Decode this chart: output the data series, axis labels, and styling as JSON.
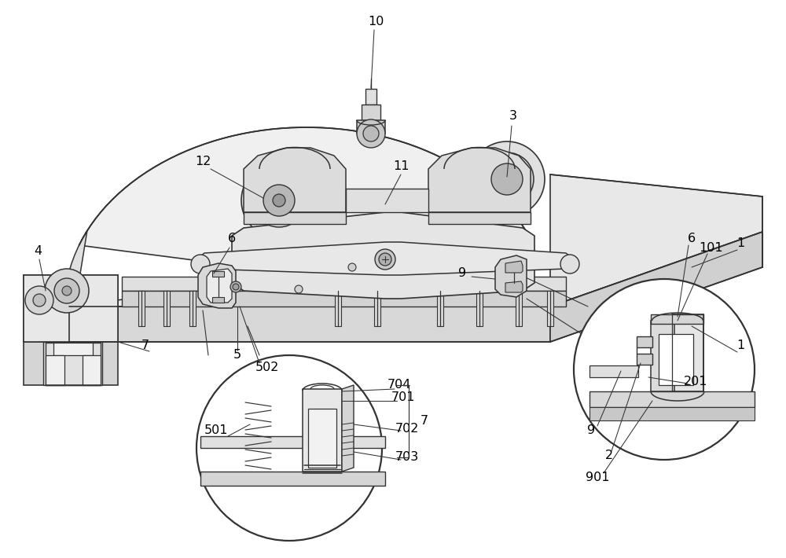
{
  "bg_color": "#ffffff",
  "lc": "#333333",
  "fc_plate_top": "#f2f2f2",
  "fc_plate_front": "#e0e0e0",
  "fc_plate_side": "#d8d8d8",
  "fc_med": "#e8e8e8",
  "fc_dark": "#d0d0d0",
  "fc_darker": "#c0c0c0",
  "fc_white": "#ffffff",
  "figsize": [
    10.0,
    7.1
  ],
  "dpi": 100
}
